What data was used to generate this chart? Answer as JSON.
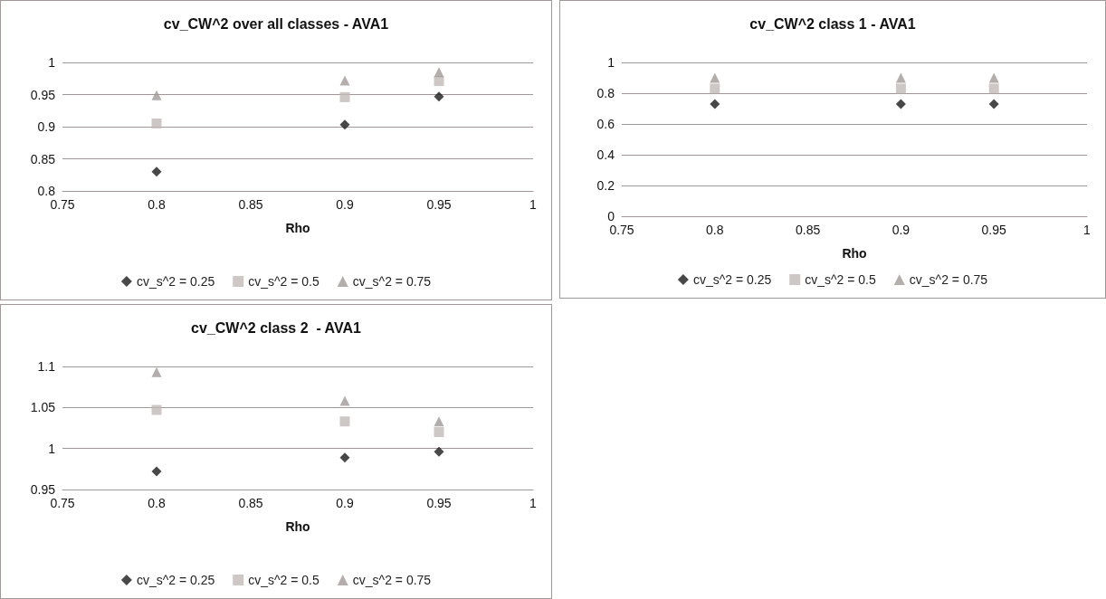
{
  "chart_data": [
    {
      "type": "scatter",
      "title": "cv_CW^2 over all classes - AVA1",
      "xlabel": "Rho",
      "x": [
        0.8,
        0.9,
        0.95
      ],
      "xlim": [
        0.75,
        1
      ],
      "xticks": [
        0.75,
        0.8,
        0.85,
        0.9,
        0.95,
        1
      ],
      "ylim": [
        0.8,
        1
      ],
      "yticks": [
        0.8,
        0.85,
        0.9,
        0.95,
        1
      ],
      "grid": "y",
      "legend": "bottom",
      "series": [
        {
          "name": "cv_s^2 = 0.25",
          "color": "#1a1a1a",
          "marker": "diamond",
          "values": [
            0.83,
            0.903,
            0.947
          ]
        },
        {
          "name": "cv_s^2 = 0.5",
          "color": "#c0bab8",
          "marker": "square",
          "values": [
            0.905,
            0.946,
            0.971
          ]
        },
        {
          "name": "cv_s^2 = 0.75",
          "color": "#a09896",
          "marker": "triangle",
          "values": [
            0.949,
            0.972,
            0.985
          ]
        }
      ]
    },
    {
      "type": "scatter",
      "title": "cv_CW^2 class 1 - AVA1",
      "xlabel": "Rho",
      "x": [
        0.8,
        0.9,
        0.95
      ],
      "xlim": [
        0.75,
        1
      ],
      "xticks": [
        0.75,
        0.8,
        0.85,
        0.9,
        0.95,
        1
      ],
      "ylim": [
        0,
        1
      ],
      "yticks": [
        0,
        0.2,
        0.4,
        0.6,
        0.8,
        1
      ],
      "grid": "y",
      "legend": "bottom",
      "series": [
        {
          "name": "cv_s^2 = 0.25",
          "color": "#1a1a1a",
          "marker": "diamond",
          "values": [
            0.73,
            0.73,
            0.73
          ]
        },
        {
          "name": "cv_s^2 = 0.5",
          "color": "#c0bab8",
          "marker": "square",
          "values": [
            0.83,
            0.83,
            0.83
          ]
        },
        {
          "name": "cv_s^2 = 0.75",
          "color": "#a09896",
          "marker": "triangle",
          "values": [
            0.9,
            0.9,
            0.9
          ]
        }
      ]
    },
    {
      "type": "scatter",
      "title": "cv_CW^2 class 2  - AVA1",
      "xlabel": "Rho",
      "x": [
        0.8,
        0.9,
        0.95
      ],
      "xlim": [
        0.75,
        1
      ],
      "xticks": [
        0.75,
        0.8,
        0.85,
        0.9,
        0.95,
        1
      ],
      "ylim": [
        0.95,
        1.1
      ],
      "yticks": [
        0.95,
        1,
        1.05,
        1.1
      ],
      "grid": "y",
      "legend": "bottom",
      "series": [
        {
          "name": "cv_s^2 = 0.25",
          "color": "#1a1a1a",
          "marker": "diamond",
          "values": [
            0.972,
            0.989,
            0.996
          ]
        },
        {
          "name": "cv_s^2 = 0.5",
          "color": "#c0bab8",
          "marker": "square",
          "values": [
            1.047,
            1.033,
            1.02
          ]
        },
        {
          "name": "cv_s^2 = 0.75",
          "color": "#a09896",
          "marker": "triangle",
          "values": [
            1.093,
            1.058,
            1.033
          ]
        }
      ]
    }
  ]
}
